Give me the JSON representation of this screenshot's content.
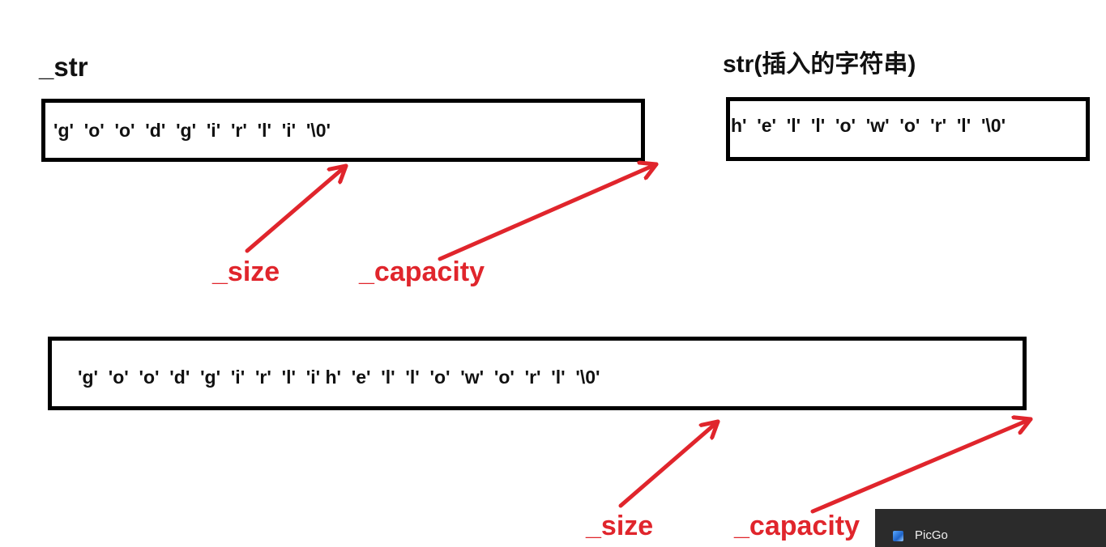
{
  "top_left": {
    "title": "_str",
    "chars": "'g'  'o'  'o'  'd'  'g'  'i'  'r'  'l'  'i'  '\\0'"
  },
  "top_right": {
    "title": "str(插入的字符串)",
    "chars": "h'  'e'  'l'  'l'  'o'  'w'  'o'  'r'  'l'  '\\0'"
  },
  "bottom": {
    "chars": "'g'  'o'  'o'  'd'  'g'  'i'  'r'  'l'  'i' h'  'e'  'l'  'l'  'o'  'w'  'o'  'r'  'l'  '\\0'"
  },
  "labels": {
    "size_top": "_size",
    "capacity_top": "_capacity",
    "size_bottom": "_size",
    "capacity_bottom": "_capacity"
  },
  "colors": {
    "arrow": "#e0252c",
    "box_border": "#000000"
  },
  "taskbar": {
    "app_name": "PicGo",
    "icon": "picgo-icon"
  }
}
